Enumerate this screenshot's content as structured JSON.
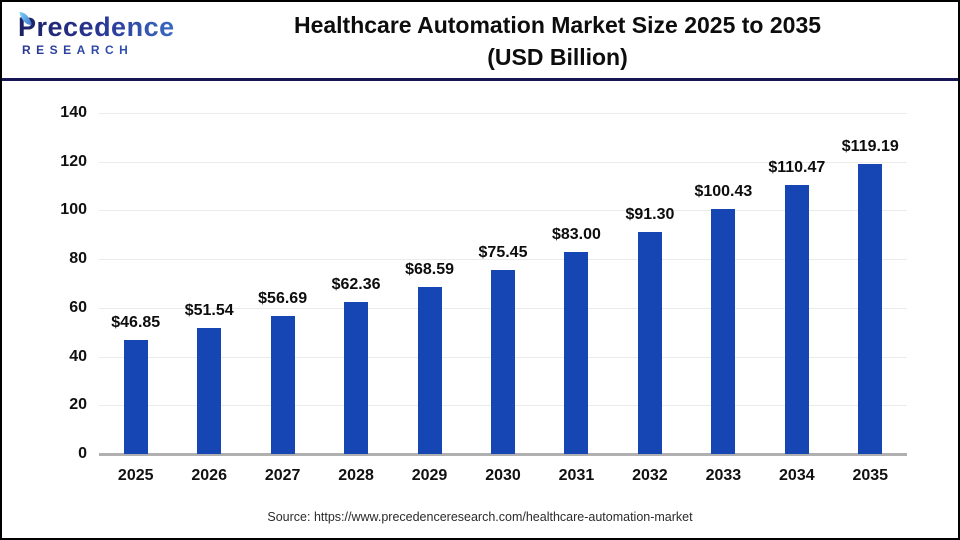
{
  "header": {
    "logo_line1": "Precedence",
    "logo_line2": "RESEARCH",
    "title_line1": "Healthcare Automation Market Size 2025 to 2035",
    "title_line2": "(USD Billion)"
  },
  "chart_data": {
    "type": "bar",
    "title": "Healthcare Automation Market Size 2025 to 2035 (USD Billion)",
    "categories": [
      "2025",
      "2026",
      "2027",
      "2028",
      "2029",
      "2030",
      "2031",
      "2032",
      "2033",
      "2034",
      "2035"
    ],
    "values": [
      46.85,
      51.54,
      56.69,
      62.36,
      68.59,
      75.45,
      83.0,
      91.3,
      100.43,
      110.47,
      119.19
    ],
    "value_labels": [
      "$46.85",
      "$51.54",
      "$56.69",
      "$62.36",
      "$68.59",
      "$75.45",
      "$83.00",
      "$91.30",
      "$100.43",
      "$110.47",
      "$119.19"
    ],
    "xlabel": "",
    "ylabel": "",
    "ylim": [
      0,
      140
    ],
    "yticks": [
      0,
      20,
      40,
      60,
      80,
      100,
      120,
      140
    ],
    "grid": true,
    "legend_position": "none",
    "bar_color": "#1645b4"
  },
  "source": {
    "text": "Source: https://www.precedenceresearch.com/healthcare-automation-market"
  },
  "colors": {
    "divider": "#161655",
    "gridline": "#ebebeb",
    "baseline": "#b0b0b0",
    "title_text": "#0d0d0d",
    "logo_navy": "#283593",
    "logo_blue": "#3f7ad1"
  }
}
